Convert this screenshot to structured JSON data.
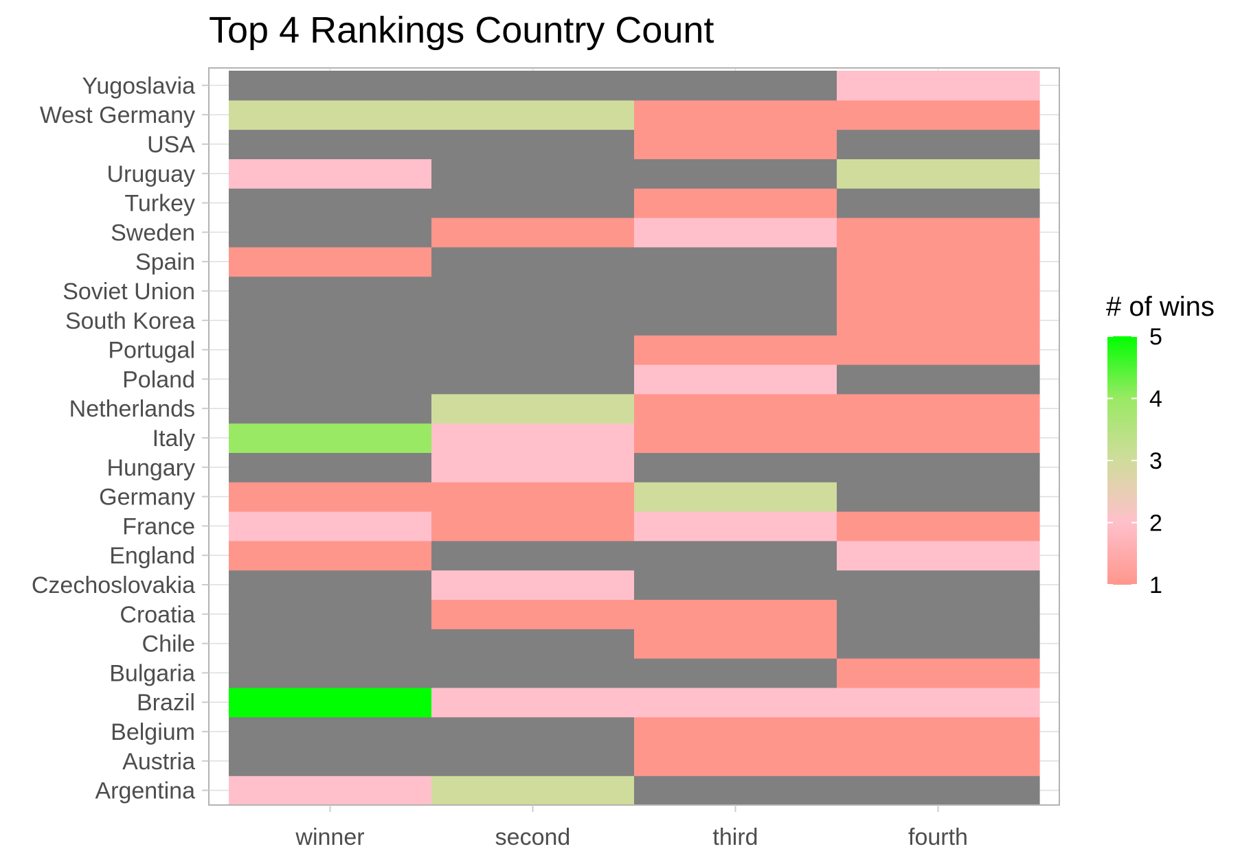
{
  "chart_data": {
    "type": "heatmap",
    "title": "Top 4 Rankings Country Count",
    "xlabel": "",
    "ylabel": "",
    "x_categories": [
      "winner",
      "second",
      "third",
      "fourth"
    ],
    "y_categories": [
      "Argentina",
      "Austria",
      "Belgium",
      "Brazil",
      "Bulgaria",
      "Chile",
      "Croatia",
      "Czechoslovakia",
      "England",
      "France",
      "Germany",
      "Hungary",
      "Italy",
      "Netherlands",
      "Poland",
      "Portugal",
      "South Korea",
      "Soviet Union",
      "Spain",
      "Sweden",
      "Turkey",
      "Uruguay",
      "USA",
      "West Germany",
      "Yugoslavia"
    ],
    "values": {
      "Argentina": [
        2,
        3,
        null,
        null
      ],
      "Austria": [
        null,
        null,
        1,
        1
      ],
      "Belgium": [
        null,
        null,
        1,
        1
      ],
      "Brazil": [
        5,
        2,
        2,
        2
      ],
      "Bulgaria": [
        null,
        null,
        null,
        1
      ],
      "Chile": [
        null,
        null,
        1,
        null
      ],
      "Croatia": [
        null,
        1,
        1,
        null
      ],
      "Czechoslovakia": [
        null,
        2,
        null,
        null
      ],
      "England": [
        1,
        null,
        null,
        2
      ],
      "France": [
        2,
        1,
        2,
        1
      ],
      "Germany": [
        1,
        1,
        3,
        null
      ],
      "Hungary": [
        null,
        2,
        null,
        null
      ],
      "Italy": [
        4,
        2,
        1,
        1
      ],
      "Netherlands": [
        null,
        3,
        1,
        1
      ],
      "Poland": [
        null,
        null,
        2,
        null
      ],
      "Portugal": [
        null,
        null,
        1,
        1
      ],
      "South Korea": [
        null,
        null,
        null,
        1
      ],
      "Soviet Union": [
        null,
        null,
        null,
        1
      ],
      "Spain": [
        1,
        null,
        null,
        1
      ],
      "Sweden": [
        null,
        1,
        2,
        1
      ],
      "Turkey": [
        null,
        null,
        1,
        null
      ],
      "Uruguay": [
        2,
        null,
        null,
        3
      ],
      "USA": [
        null,
        null,
        1,
        null
      ],
      "West Germany": [
        3,
        3,
        1,
        1
      ],
      "Yugoslavia": [
        null,
        null,
        null,
        2
      ]
    },
    "na_color": "#808080",
    "legend": {
      "title": "# of wins",
      "min": 1,
      "max": 5,
      "ticks": [
        1,
        2,
        3,
        4,
        5
      ],
      "colors": [
        "#ff968c",
        "#ffc0cb",
        "#d0dc9c",
        "#9ae965",
        "#00ff00"
      ],
      "placement": "right"
    },
    "grid": true
  }
}
